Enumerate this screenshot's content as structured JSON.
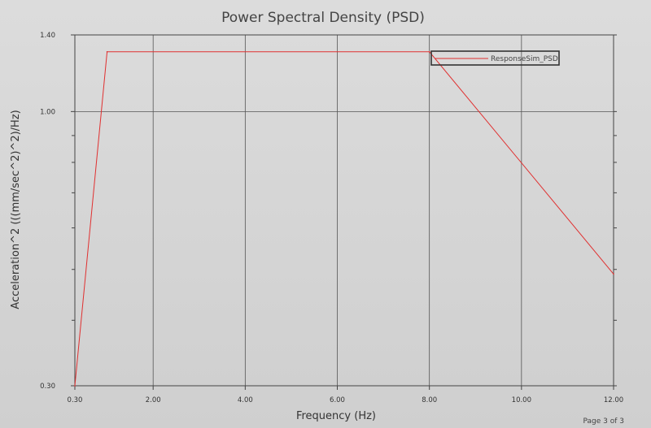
{
  "chart_data": {
    "type": "line",
    "title": "Power Spectral Density (PSD)",
    "xlabel": "Frequency (Hz)",
    "ylabel": "Acceleration^2 (((mm/sec^2)^2)/Hz)",
    "xlim": [
      0.3,
      12.0
    ],
    "ylim": [
      0.3,
      1.4
    ],
    "yscale": "log",
    "x_ticks": [
      0.3,
      2.0,
      4.0,
      6.0,
      8.0,
      10.0,
      12.0
    ],
    "x_tick_labels": [
      "0.30",
      "2.00",
      "4.00",
      "6.00",
      "8.00",
      "10.00",
      "12.00"
    ],
    "y_ticks": [
      0.3,
      1.0,
      1.4
    ],
    "y_tick_labels": [
      "0.30",
      "1.00",
      "1.40"
    ],
    "y_minor_ticks": [
      0.4,
      0.5,
      0.6,
      0.7,
      0.8,
      0.9
    ],
    "grid": true,
    "legend_position": "top-right",
    "series": [
      {
        "name": "ResponseSim_PSD",
        "color": "#e03030",
        "x": [
          0.3,
          1.0,
          8.0,
          12.0
        ],
        "y": [
          0.3,
          1.3,
          1.3,
          0.49
        ]
      }
    ]
  },
  "footer": {
    "page_indicator": "Page 3 of 3"
  }
}
